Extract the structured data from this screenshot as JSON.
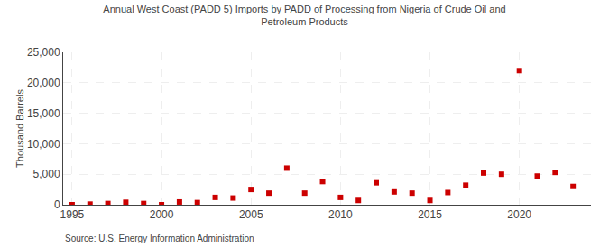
{
  "chart_data": {
    "type": "scatter",
    "title": "Annual West Coast (PADD 5) Imports by PADD of Processing from Nigeria of Crude Oil and",
    "subtitle": "Petroleum Products",
    "ylabel": "Thousand Barrels",
    "annotations": [
      "Source: U.S. Energy Information Administration"
    ],
    "x": [
      1995,
      1996,
      1997,
      1998,
      1999,
      2000,
      2001,
      2002,
      2003,
      2004,
      2005,
      2006,
      2007,
      2008,
      2009,
      2010,
      2011,
      2012,
      2013,
      2014,
      2015,
      2016,
      2017,
      2018,
      2019,
      2020,
      2021,
      2022,
      2023
    ],
    "values": [
      0,
      100,
      200,
      400,
      200,
      0,
      450,
      350,
      1200,
      1100,
      2500,
      1900,
      6000,
      1900,
      3800,
      1200,
      700,
      3600,
      2100,
      1900,
      700,
      2000,
      3200,
      5200,
      5000,
      22000,
      4700,
      5300,
      3000
    ],
    "color": "#cc0000",
    "marker": "square",
    "xlim": [
      1994.5,
      2024
    ],
    "xticks": [
      1995,
      2000,
      2005,
      2010,
      2015,
      2020
    ],
    "ylim": [
      0,
      25000
    ],
    "yticks": [
      0,
      {
        "value": 5000,
        "label": "5,000"
      },
      {
        "value": 10000,
        "label": "10,000"
      },
      {
        "value": 15000,
        "label": "15,000"
      },
      {
        "value": 20000,
        "label": "20,000"
      },
      {
        "value": 25000,
        "label": "25,000"
      }
    ],
    "grid": true
  }
}
